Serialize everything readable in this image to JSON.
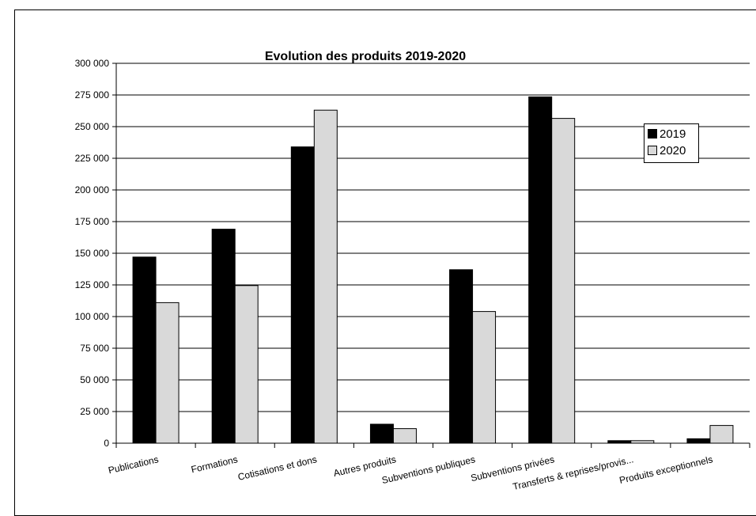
{
  "chart_data": {
    "type": "bar",
    "title": "Evolution des produits 2019-2020",
    "xlabel": "",
    "ylabel": "",
    "ylim": [
      0,
      300000
    ],
    "ytick_step": 25000,
    "ytick_labels": [
      "0",
      "25 000",
      "50 000",
      "75 000",
      "100 000",
      "125 000",
      "150 000",
      "175 000",
      "200 000",
      "225 000",
      "250 000",
      "275 000",
      "300 000"
    ],
    "categories": [
      "Publications",
      "Formations",
      "Cotisations et dons",
      "Autres produits",
      "Subventions publiques",
      "Subventions privées",
      "Transferts & reprises/provis...",
      "Produits exceptionnels"
    ],
    "series": [
      {
        "name": "2019",
        "color": "#000000",
        "values": [
          147000,
          169000,
          234000,
          15000,
          137000,
          273500,
          2000,
          3500
        ]
      },
      {
        "name": "2020",
        "color": "#d9d9d9",
        "values": [
          111000,
          124500,
          263000,
          11500,
          104000,
          256500,
          2000,
          14000
        ]
      }
    ],
    "grid": true,
    "legend_position": "top-right"
  },
  "legend": {
    "label_2019": "2019",
    "label_2020": "2020"
  }
}
